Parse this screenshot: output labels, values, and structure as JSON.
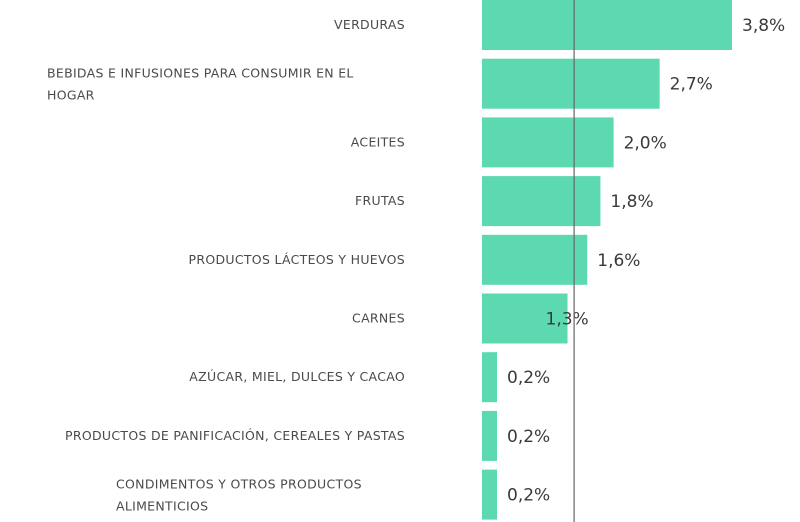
{
  "chart_data": {
    "type": "bar",
    "orientation": "horizontal",
    "title": "",
    "xlabel": "",
    "ylabel": "",
    "categories": [
      [
        "VERDURAS"
      ],
      [
        "BEBIDAS E INFUSIONES PARA CONSUMIR EN EL",
        "HOGAR"
      ],
      [
        "ACEITES"
      ],
      [
        "FRUTAS"
      ],
      [
        "PRODUCTOS LÁCTEOS Y HUEVOS"
      ],
      [
        "CARNES"
      ],
      [
        "AZÚCAR, MIEL, DULCES Y CACAO"
      ],
      [
        "PRODUCTOS DE PANIFICACIÓN, CEREALES Y PASTAS"
      ],
      [
        "CONDIMENTOS Y OTROS PRODUCTOS",
        "ALIMENTICIOS"
      ]
    ],
    "values": [
      3.8,
      2.7,
      2.0,
      1.8,
      1.6,
      1.3,
      0.2,
      0.2,
      0.2
    ],
    "value_labels": [
      "3,8%",
      "2,7%",
      "2,0%",
      "1,8%",
      "1,6%",
      "1,3%",
      "0,2%",
      "0,2%",
      "0,2%"
    ],
    "reference_line": 1.4,
    "xlim": [
      0,
      3.8
    ],
    "grid": false,
    "bar_color": "#5cd9b0",
    "reference_line_color": "#666666"
  }
}
